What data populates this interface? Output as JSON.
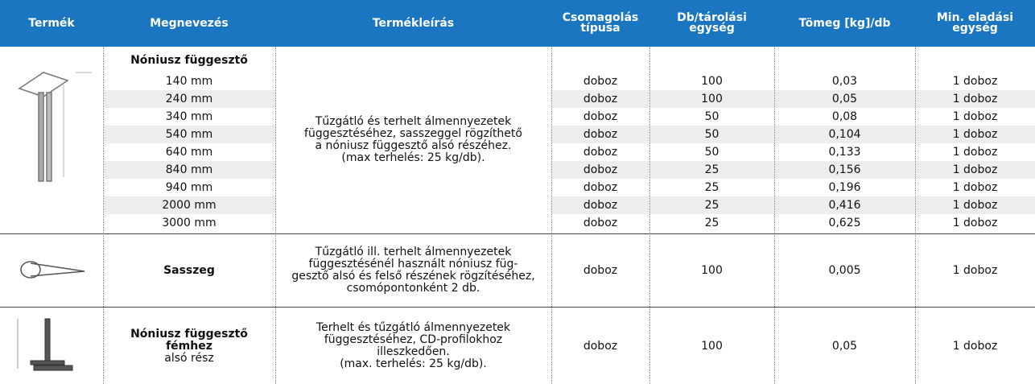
{
  "table": {
    "header": [
      "Termék",
      "Megnevezés",
      "Termékleírás",
      "Csomagolás\ntípusa",
      "Db/tárolási\negység",
      "Tömeg [kg]/db",
      "Min. eladási\negység"
    ],
    "groups": [
      {
        "name": "Nóniusz függesztő",
        "description": "Tűzgátló és terhelt álmennyezetek\nfüggesztéséhez, sasszeggel rögzíthető\na nóniusz függesztő alsó részéhez.\n(max terhelés: 25 kg/db).",
        "rows": [
          [
            "140 mm",
            "doboz",
            "100",
            "0,03",
            "1 doboz"
          ],
          [
            "240 mm",
            "doboz",
            "100",
            "0,05",
            "1 doboz"
          ],
          [
            "340 mm",
            "doboz",
            "50",
            "0,08",
            "1 doboz"
          ],
          [
            "540 mm",
            "doboz",
            "50",
            "0,104",
            "1 doboz"
          ],
          [
            "640 mm",
            "doboz",
            "50",
            "0,133",
            "1 doboz"
          ],
          [
            "840 mm",
            "doboz",
            "25",
            "0,156",
            "1 doboz"
          ],
          [
            "940 mm",
            "doboz",
            "25",
            "0,196",
            "1 doboz"
          ],
          [
            "2000 mm",
            "doboz",
            "25",
            "0,416",
            "1 doboz"
          ],
          [
            "3000 mm",
            "doboz",
            "25",
            "0,625",
            "1 doboz"
          ]
        ]
      },
      {
        "name": "Sasszeg",
        "description": "Tűzgátló ill. terhelt álmennyezetek\nfüggesztésénél használt nóniusz füg-\ngesztő alsó és felső részének rögzítéséhez,\ncsomópontonként 2 db.",
        "rows": [
          [
            "doboz",
            "100",
            "0,005",
            "1 doboz"
          ]
        ]
      },
      {
        "name": "Nóniusz függesztő\nfémhez",
        "subname": "alsó rész",
        "description": "Terhelt és tűzgátló álmennyezetek\nfüggesztéséhez, CD-profilokhoz\nilleszkedően.\n(max. terhelés: 25 kg/db).",
        "rows": [
          [
            "doboz",
            "100",
            "0,05",
            "1 doboz"
          ]
        ]
      }
    ]
  }
}
